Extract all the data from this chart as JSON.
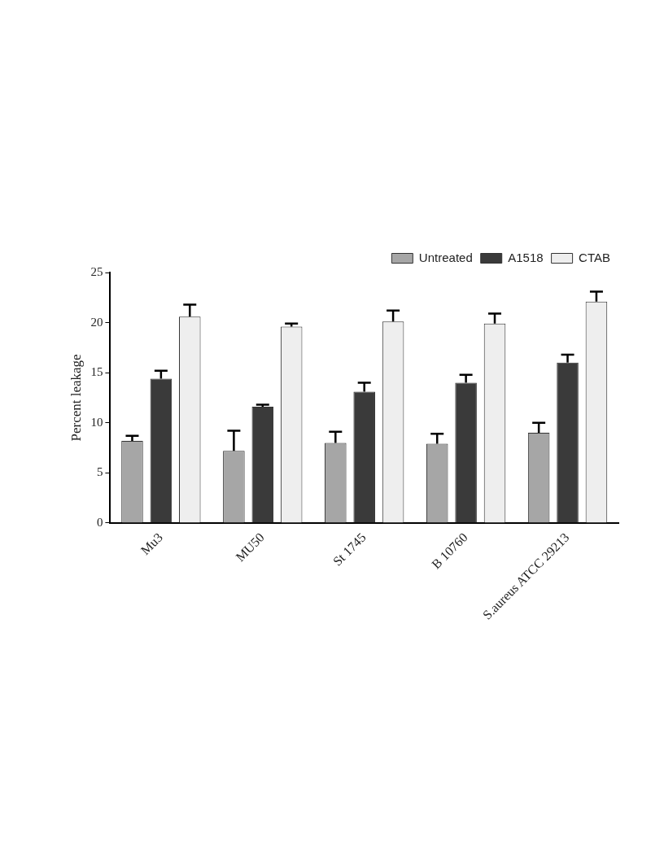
{
  "chart_data": {
    "type": "bar",
    "ylabel": "Percent leakage",
    "categories": [
      "Mu3",
      "MU50",
      "St 1745",
      "B 10760",
      "S.aureus ATCC 29213"
    ],
    "series": [
      {
        "name": "Untreated",
        "color": "#a6a6a6",
        "values": [
          8.2,
          7.2,
          8.0,
          7.9,
          9.0
        ],
        "errors": [
          0.5,
          2.0,
          1.1,
          1.0,
          1.0
        ]
      },
      {
        "name": "A1518",
        "color": "#3a3a3a",
        "values": [
          14.4,
          11.6,
          13.1,
          14.0,
          16.0
        ],
        "errors": [
          0.8,
          0.2,
          0.9,
          0.8,
          0.8
        ]
      },
      {
        "name": "CTAB",
        "color": "#eeeeee",
        "values": [
          20.6,
          19.6,
          20.1,
          19.9,
          22.1
        ],
        "errors": [
          1.2,
          0.3,
          1.1,
          1.0,
          1.0
        ]
      }
    ],
    "ylim": [
      0,
      25
    ],
    "yticks": [
      0,
      5,
      10,
      15,
      20,
      25
    ],
    "grid": false,
    "legend": "top right"
  }
}
